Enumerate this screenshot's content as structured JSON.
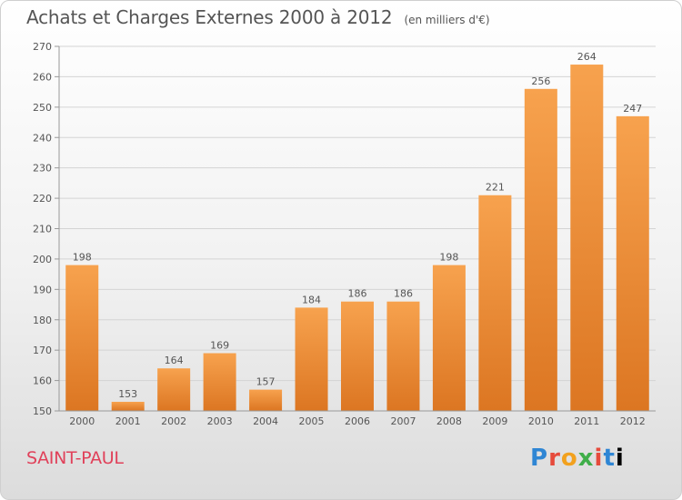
{
  "title": "Achats et Charges Externes 2000 à 2012",
  "subtitle": "(en milliers d'€)",
  "city": "SAINT-PAUL",
  "logo": {
    "name": "Proxiti",
    "letters": [
      "P",
      "r",
      "o",
      "x",
      "i",
      "t",
      "i"
    ]
  },
  "colors": {
    "bar_top": "#f7a24e",
    "bar_bottom": "#dc7622",
    "title": "#555555",
    "city": "#e0415a"
  },
  "chart_data": {
    "type": "bar",
    "title": "Achats et Charges Externes 2000 à 2012",
    "subtitle": "(en milliers d'€)",
    "categories": [
      "2000",
      "2001",
      "2002",
      "2003",
      "2004",
      "2005",
      "2006",
      "2007",
      "2008",
      "2009",
      "2010",
      "2011",
      "2012"
    ],
    "values": [
      198,
      153,
      164,
      169,
      157,
      184,
      186,
      186,
      198,
      221,
      256,
      264,
      247
    ],
    "ylim": [
      150,
      270
    ],
    "yticks": [
      150,
      160,
      170,
      180,
      190,
      200,
      210,
      220,
      230,
      240,
      250,
      260,
      270
    ],
    "grid": true,
    "legend": "none",
    "data_labels": true
  }
}
